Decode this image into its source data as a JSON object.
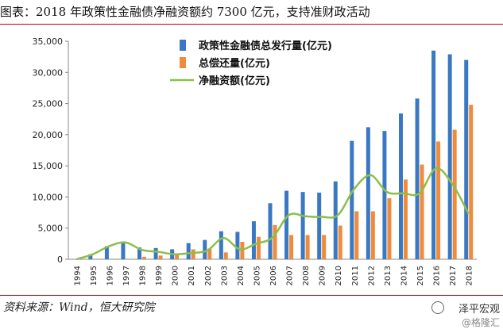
{
  "title": "图表：2018 年政策性金融债净融资额约 7300 亿元，支持准财政活动",
  "source": "资料来源：Wind，恒大研究院",
  "watermark": {
    "line1": "泽平宏观",
    "line2": "@格隆汇"
  },
  "colors": {
    "issuance": "#3a78c4",
    "repayment": "#ef8b3c",
    "net": "#8cbf4a",
    "title_rule": "#c00000"
  },
  "chart_data": {
    "type": "bar",
    "title": "",
    "xlabel": "",
    "ylabel": "",
    "ylim": [
      0,
      35000
    ],
    "yticks": [
      "0",
      "5,000",
      "10,000",
      "15,000",
      "20,000",
      "25,000",
      "30,000",
      "35,000"
    ],
    "categories": [
      "1994",
      "1995",
      "1996",
      "1997",
      "1998",
      "1999",
      "2000",
      "2001",
      "2002",
      "2003",
      "2004",
      "2005",
      "2006",
      "2007",
      "2008",
      "2009",
      "2010",
      "2011",
      "2012",
      "2013",
      "2014",
      "2015",
      "2016",
      "2017",
      "2018"
    ],
    "legend_position": "top-left",
    "series": [
      {
        "name": "政策性金融债总发行量(亿元)",
        "kind": "bar",
        "values": [
          0,
          800,
          2100,
          2700,
          1900,
          1800,
          1600,
          2600,
          3100,
          4500,
          4400,
          6100,
          9000,
          11000,
          10800,
          10700,
          12500,
          19000,
          21200,
          20600,
          23400,
          25800,
          33500,
          32900,
          32000
        ]
      },
      {
        "name": "总偿还量(亿元)",
        "kind": "bar",
        "values": [
          0,
          0,
          0,
          0,
          400,
          600,
          800,
          1600,
          1700,
          1100,
          2800,
          3600,
          5500,
          3900,
          3900,
          3900,
          5400,
          7700,
          7700,
          9800,
          12800,
          15200,
          18900,
          20800,
          24800
        ]
      },
      {
        "name": "净融资额(亿元)",
        "kind": "line",
        "values": [
          0,
          800,
          2100,
          2700,
          1500,
          1200,
          800,
          1000,
          1400,
          3400,
          1600,
          2500,
          3500,
          7100,
          6900,
          6800,
          7100,
          11300,
          13500,
          10800,
          10600,
          10600,
          14600,
          12100,
          7300
        ]
      }
    ]
  }
}
